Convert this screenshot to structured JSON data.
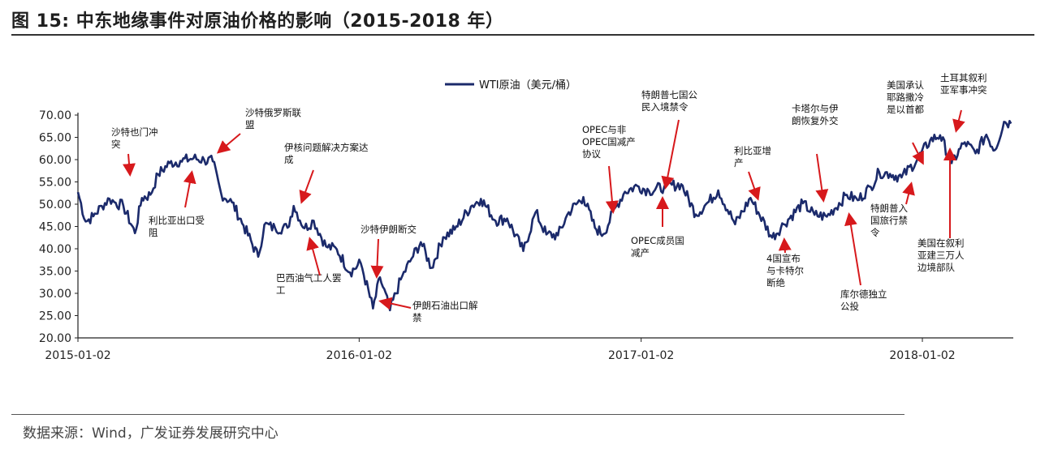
{
  "figure": {
    "title": "图 15:  中东地缘事件对原油价格的影响（2015-2018 年）",
    "source": "数据来源：Wind，广发证券发展研究中心"
  },
  "colors": {
    "line": "#1b2a6b",
    "arrow": "#d7191c",
    "axis": "#222222"
  },
  "chart_data": {
    "type": "line",
    "title": "",
    "xlabel": "",
    "ylabel": "",
    "legend": {
      "label": "WTI原油（美元/桶）",
      "placement": "top-left"
    },
    "ylim": [
      20,
      70
    ],
    "yticks": [
      "70.00",
      "65.00",
      "60.00",
      "55.00",
      "50.00",
      "45.00",
      "40.00",
      "35.00",
      "30.00",
      "25.00",
      "20.00"
    ],
    "xlim": [
      "2015-01-02",
      "2018-04-30"
    ],
    "xticks": [
      "2015-01-02",
      "2016-01-02",
      "2017-01-02",
      "2018-01-02"
    ],
    "series": [
      {
        "name": "WTI原油（美元/桶）",
        "points": [
          [
            "2015-01-02",
            52.7
          ],
          [
            "2015-01-12",
            46.1
          ],
          [
            "2015-01-22",
            47.3
          ],
          [
            "2015-02-02",
            49.6
          ],
          [
            "2015-02-12",
            51.2
          ],
          [
            "2015-02-20",
            50.3
          ],
          [
            "2015-03-02",
            49.6
          ],
          [
            "2015-03-17",
            43.5
          ],
          [
            "2015-03-26",
            51.4
          ],
          [
            "2015-04-06",
            52.1
          ],
          [
            "2015-04-16",
            56.7
          ],
          [
            "2015-05-01",
            59.2
          ],
          [
            "2015-05-15",
            59.7
          ],
          [
            "2015-06-01",
            60.3
          ],
          [
            "2015-06-15",
            59.9
          ],
          [
            "2015-06-26",
            59.6
          ],
          [
            "2015-07-07",
            52.3
          ],
          [
            "2015-07-21",
            50.4
          ],
          [
            "2015-08-05",
            45.2
          ],
          [
            "2015-08-24",
            38.2
          ],
          [
            "2015-09-01",
            45.4
          ],
          [
            "2015-09-15",
            44.6
          ],
          [
            "2015-10-01",
            44.7
          ],
          [
            "2015-10-09",
            49.6
          ],
          [
            "2015-10-23",
            44.6
          ],
          [
            "2015-11-04",
            46.3
          ],
          [
            "2015-11-20",
            40.5
          ],
          [
            "2015-12-04",
            39.9
          ],
          [
            "2015-12-21",
            34.7
          ],
          [
            "2016-01-04",
            36.8
          ],
          [
            "2016-01-20",
            26.6
          ],
          [
            "2016-01-29",
            33.6
          ],
          [
            "2016-02-11",
            26.2
          ],
          [
            "2016-02-25",
            33.1
          ],
          [
            "2016-03-10",
            37.8
          ],
          [
            "2016-03-22",
            41.5
          ],
          [
            "2016-04-05",
            35.7
          ],
          [
            "2016-04-20",
            42.6
          ],
          [
            "2016-05-05",
            44.3
          ],
          [
            "2016-05-26",
            49.5
          ],
          [
            "2016-06-08",
            51.2
          ],
          [
            "2016-06-27",
            46.3
          ],
          [
            "2016-07-12",
            46.8
          ],
          [
            "2016-08-02",
            39.5
          ],
          [
            "2016-08-18",
            48.2
          ],
          [
            "2016-09-01",
            43.2
          ],
          [
            "2016-09-16",
            43.0
          ],
          [
            "2016-09-30",
            48.2
          ],
          [
            "2016-10-19",
            51.6
          ],
          [
            "2016-11-03",
            44.7
          ],
          [
            "2016-11-14",
            43.3
          ],
          [
            "2016-11-30",
            49.4
          ],
          [
            "2016-12-12",
            52.8
          ],
          [
            "2016-12-28",
            54.1
          ],
          [
            "2017-01-12",
            53.0
          ],
          [
            "2017-02-01",
            53.9
          ],
          [
            "2017-02-23",
            54.5
          ],
          [
            "2017-03-14",
            47.7
          ],
          [
            "2017-03-31",
            50.6
          ],
          [
            "2017-04-12",
            53.1
          ],
          [
            "2017-05-04",
            45.5
          ],
          [
            "2017-05-24",
            51.4
          ],
          [
            "2017-06-21",
            42.5
          ],
          [
            "2017-07-06",
            45.5
          ],
          [
            "2017-07-31",
            50.2
          ],
          [
            "2017-08-15",
            47.6
          ],
          [
            "2017-08-31",
            47.2
          ],
          [
            "2017-09-26",
            52.1
          ],
          [
            "2017-10-10",
            50.9
          ],
          [
            "2017-10-27",
            53.9
          ],
          [
            "2017-11-07",
            57.2
          ],
          [
            "2017-11-21",
            56.8
          ],
          [
            "2017-12-06",
            56.0
          ],
          [
            "2017-12-26",
            59.9
          ],
          [
            "2018-01-12",
            64.3
          ],
          [
            "2018-01-25",
            65.5
          ],
          [
            "2018-02-09",
            59.2
          ],
          [
            "2018-02-26",
            63.9
          ],
          [
            "2018-03-12",
            61.4
          ],
          [
            "2018-03-26",
            65.6
          ],
          [
            "2018-04-06",
            62.1
          ],
          [
            "2018-04-18",
            68.5
          ],
          [
            "2018-04-27",
            68.1
          ]
        ]
      }
    ],
    "annotations": [
      {
        "lines": [
          "沙特也门冲",
          "突"
        ]
      },
      {
        "lines": [
          "利比亚出口受",
          "阻"
        ]
      },
      {
        "lines": [
          "沙特俄罗斯联",
          "盟"
        ]
      },
      {
        "lines": [
          "伊核问题解决方案达",
          "成"
        ]
      },
      {
        "lines": [
          "巴西油气工人罢",
          "工"
        ]
      },
      {
        "lines": [
          "沙特伊朗断交"
        ]
      },
      {
        "lines": [
          "伊朗石油出口解",
          "禁"
        ]
      },
      {
        "lines": [
          "OPEC与非",
          "OPEC国减产",
          "协议"
        ]
      },
      {
        "lines": [
          "特朗普七国公",
          "民入境禁令"
        ]
      },
      {
        "lines": [
          "OPEC成员国",
          "减产"
        ]
      },
      {
        "lines": [
          "利比亚增",
          "产"
        ]
      },
      {
        "lines": [
          "4国宣布",
          "与卡特尔",
          "断绝"
        ]
      },
      {
        "lines": [
          "卡塔尔与伊",
          "朗恢复外交"
        ]
      },
      {
        "lines": [
          "库尔德独立",
          "公投"
        ]
      },
      {
        "lines": [
          "美国承认",
          "耶路撒冷",
          "是以首都"
        ]
      },
      {
        "lines": [
          "特朗普入",
          "国旅行禁",
          "令"
        ]
      },
      {
        "lines": [
          "土耳其叙利",
          "亚军事冲突"
        ]
      },
      {
        "lines": [
          "美国在叙利",
          "亚建三万人",
          "边境部队"
        ]
      }
    ]
  }
}
